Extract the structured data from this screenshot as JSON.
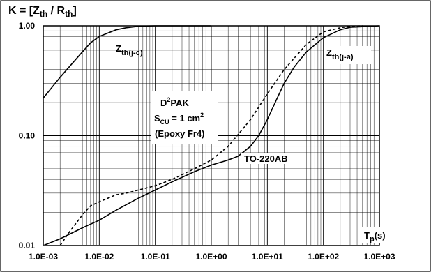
{
  "chart_data": {
    "type": "line",
    "title_main": "K = [Z",
    "title_sub1": "th",
    "title_mid": " / R",
    "title_sub2": "th",
    "title_end": "]",
    "x_unit_main": "T",
    "x_unit_sub": "p",
    "x_unit_end": "(s)",
    "x_scale": "log",
    "y_scale": "log",
    "xlim": [
      0.001,
      1000
    ],
    "ylim": [
      0.01,
      1
    ],
    "grid": true,
    "x_ticks": [
      {
        "value": 0.001,
        "label": "1.0E-03"
      },
      {
        "value": 0.01,
        "label": "1.0E-02"
      },
      {
        "value": 0.1,
        "label": "1.0E-01"
      },
      {
        "value": 1,
        "label": "1.0E+00"
      },
      {
        "value": 10,
        "label": "1.0E+01"
      },
      {
        "value": 100,
        "label": "1.0E+02"
      },
      {
        "value": 1000,
        "label": "1.0E+03"
      }
    ],
    "y_ticks": [
      {
        "value": 1,
        "label": "1.00"
      },
      {
        "value": 0.1,
        "label": "0.10"
      },
      {
        "value": 0.01,
        "label": "0.01"
      }
    ],
    "series": [
      {
        "style": "solid",
        "x": [
          0.001,
          0.002,
          0.003,
          0.005,
          0.007,
          0.01,
          0.02,
          0.03,
          0.05,
          0.07,
          0.1,
          0.2,
          0.5,
          1
        ],
        "y": [
          0.22,
          0.34,
          0.43,
          0.58,
          0.7,
          0.8,
          0.92,
          0.96,
          0.99,
          0.995,
          1.0,
          1.0,
          1.0,
          1.0
        ]
      },
      {
        "style": "solid",
        "x": [
          0.001,
          0.002,
          0.005,
          0.01,
          0.02,
          0.05,
          0.1,
          0.2,
          0.5,
          1,
          2,
          3,
          5,
          7,
          10,
          15,
          20,
          30,
          50,
          100,
          200,
          300,
          1000
        ],
        "y": [
          0.01,
          0.0115,
          0.0145,
          0.017,
          0.021,
          0.027,
          0.032,
          0.038,
          0.047,
          0.054,
          0.06,
          0.065,
          0.08,
          0.1,
          0.14,
          0.22,
          0.3,
          0.42,
          0.58,
          0.78,
          0.92,
          0.97,
          1.0
        ]
      },
      {
        "style": "dashed",
        "x": [
          0.002,
          0.003,
          0.005,
          0.007,
          0.01,
          0.02,
          0.03,
          0.05,
          0.1,
          0.2,
          0.5,
          1,
          2,
          5,
          10,
          20,
          50,
          100,
          200,
          300,
          500
        ],
        "y": [
          0.01,
          0.0135,
          0.019,
          0.023,
          0.025,
          0.029,
          0.03,
          0.032,
          0.035,
          0.04,
          0.05,
          0.06,
          0.08,
          0.14,
          0.24,
          0.4,
          0.68,
          0.88,
          0.96,
          0.99,
          1.0
        ]
      }
    ],
    "annotations": {
      "zth_jc_main": "Z",
      "zth_jc_sub": "th(j-c)",
      "zth_ja_main": "Z",
      "zth_ja_sub": "th(j-a)",
      "d2pak_d": "D",
      "d2pak_sup": "2",
      "d2pak_rest": "PAK",
      "scu_s": "S",
      "scu_sub": "CU",
      "scu_mid": " = 1 cm",
      "scu_sup": "2",
      "epoxy": "(Epoxy Fr4)",
      "to220": "TO-220AB"
    }
  }
}
